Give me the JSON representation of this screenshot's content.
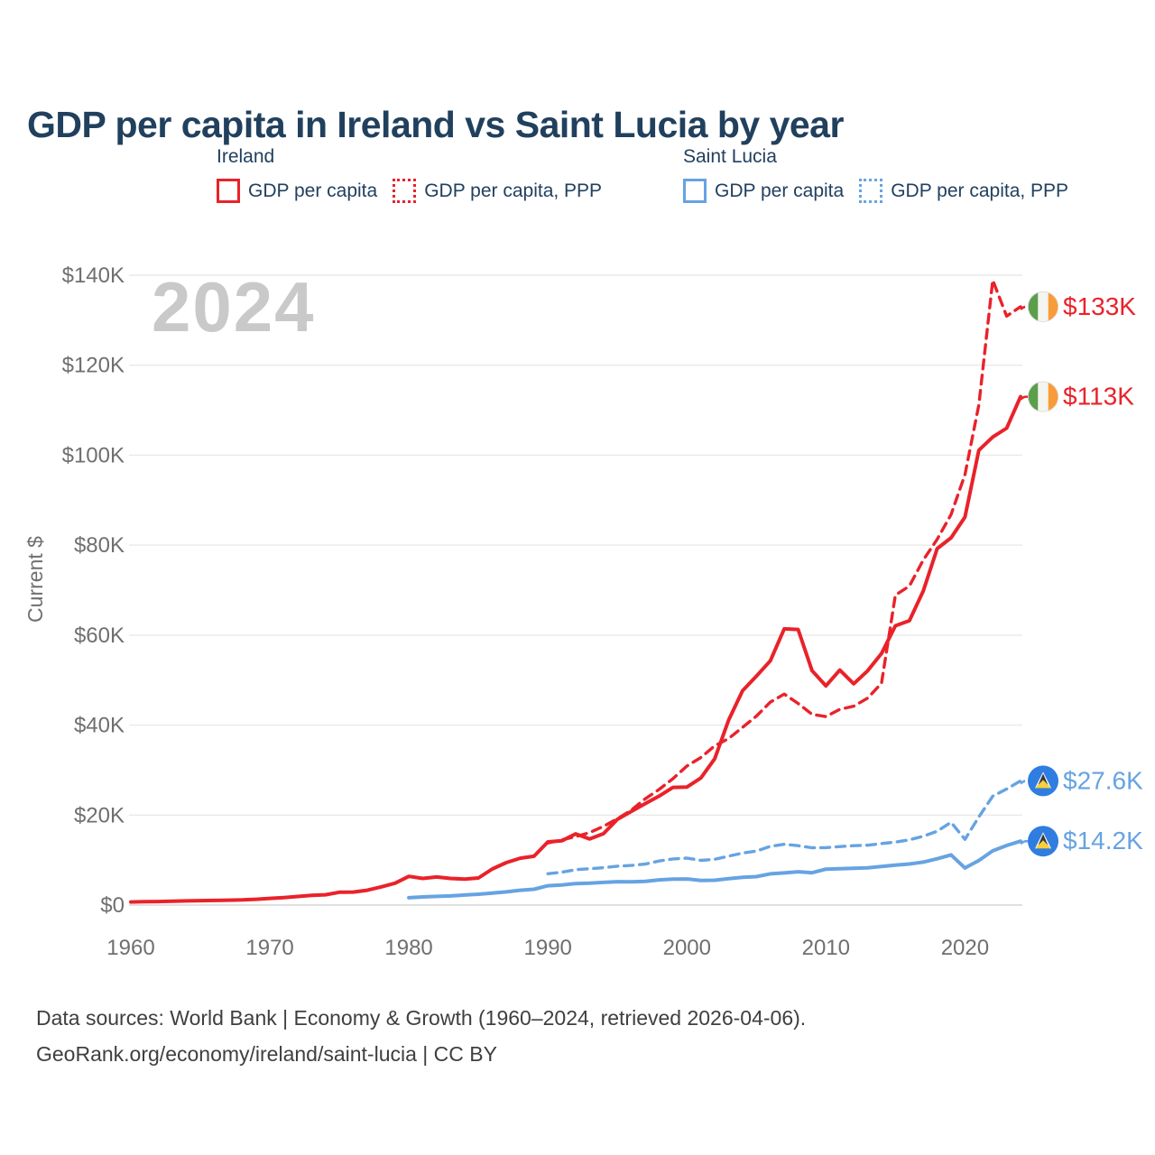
{
  "page": {
    "title": "GDP per capita in Ireland vs Saint Lucia by year",
    "footer": {
      "line1": "Data sources: World Bank | Economy & Growth (1960–2024, retrieved 2026-04-06).",
      "line2": "GeoRank.org/economy/ireland/saint-lucia | CC BY"
    }
  },
  "colors": {
    "title": "#21405e",
    "ireland_red": "#e9222a",
    "saint_lucia_blue": "#66a3e2",
    "axis_text": "#6f6f6f",
    "grid": "#e9e9e9",
    "grid_zero": "#d6d6d6",
    "watermark": "#c9c9c9",
    "footer": "#3f3f3f"
  },
  "legend": {
    "groups": [
      {
        "title": "Ireland",
        "items": [
          {
            "label": "GDP per capita",
            "color": "#e9222a",
            "dash": false
          },
          {
            "label": "GDP per capita, PPP",
            "color": "#e9222a",
            "dash": true
          }
        ]
      },
      {
        "title": "Saint Lucia",
        "items": [
          {
            "label": "GDP per capita",
            "color": "#66a3e2",
            "dash": false
          },
          {
            "label": "GDP per capita, PPP",
            "color": "#66a3e2",
            "dash": true
          }
        ]
      }
    ]
  },
  "chart_data": {
    "type": "line",
    "title": "GDP per capita in Ireland vs Saint Lucia by year",
    "xlabel": "",
    "ylabel": "Current $",
    "watermark": "2024",
    "grid": true,
    "legend_position": "top",
    "xlim": [
      1960,
      2024
    ],
    "ylim": [
      0,
      140000
    ],
    "x_ticks": [
      1960,
      1970,
      1980,
      1990,
      2000,
      2010,
      2020
    ],
    "y_ticks": [
      {
        "value": 0,
        "label": "$0"
      },
      {
        "value": 20000,
        "label": "$20K"
      },
      {
        "value": 40000,
        "label": "$40K"
      },
      {
        "value": 60000,
        "label": "$60K"
      },
      {
        "value": 80000,
        "label": "$80K"
      },
      {
        "value": 100000,
        "label": "$100K"
      },
      {
        "value": 120000,
        "label": "$120K"
      },
      {
        "value": 140000,
        "label": "$140K"
      }
    ],
    "series": [
      {
        "id": "ireland-gdp",
        "name": "Ireland GDP per capita",
        "color": "#e9222a",
        "dash": false,
        "start_year": 1960,
        "values": [
          685,
          740,
          790,
          834,
          923,
          979,
          1023,
          1090,
          1135,
          1279,
          1493,
          1655,
          1903,
          2169,
          2281,
          2847,
          2897,
          3290,
          4029,
          4851,
          6380,
          5920,
          6245,
          5922,
          5777,
          6010,
          8014,
          9433,
          10406,
          10857,
          14048,
          14284,
          15818,
          14685,
          15865,
          19060,
          20800,
          22537,
          24203,
          26153,
          26241,
          28249,
          32531,
          41111,
          47639,
          50877,
          54293,
          61391,
          61264,
          52104,
          48715,
          52224,
          49177,
          52060,
          55899,
          62085,
          63197,
          69822,
          79235,
          81637,
          86251,
          101109,
          104039,
          105993,
          113000
        ]
      },
      {
        "id": "ireland-gdp-ppp",
        "name": "Ireland GDP per capita, PPP",
        "color": "#e9222a",
        "dash": true,
        "start_year": 1990,
        "values": [
          13800,
          14500,
          15200,
          16100,
          17500,
          19200,
          21100,
          23600,
          25700,
          28100,
          30900,
          32800,
          35400,
          37000,
          39500,
          42000,
          45100,
          46900,
          44800,
          42400,
          41900,
          43500,
          44200,
          46000,
          49300,
          68900,
          70900,
          76700,
          81300,
          86800,
          95700,
          111200,
          138900,
          130900,
          133000
        ]
      },
      {
        "id": "saint-lucia-gdp",
        "name": "Saint Lucia GDP per capita",
        "color": "#66a3e2",
        "dash": false,
        "start_year": 1980,
        "values": [
          1620,
          1810,
          1930,
          2030,
          2230,
          2400,
          2670,
          2930,
          3280,
          3500,
          4290,
          4450,
          4770,
          4850,
          5040,
          5200,
          5170,
          5280,
          5600,
          5760,
          5790,
          5480,
          5510,
          5860,
          6170,
          6320,
          6940,
          7150,
          7410,
          7190,
          7980,
          8090,
          8170,
          8280,
          8570,
          8890,
          9120,
          9540,
          10280,
          11160,
          8240,
          9910,
          12050,
          13230,
          14200
        ]
      },
      {
        "id": "saint-lucia-gdp-ppp",
        "name": "Saint Lucia GDP per capita, PPP",
        "color": "#66a3e2",
        "dash": true,
        "start_year": 1990,
        "values": [
          6960,
          7300,
          7860,
          8080,
          8310,
          8650,
          8810,
          9100,
          9780,
          10240,
          10420,
          9920,
          10160,
          10870,
          11560,
          12000,
          13050,
          13500,
          13200,
          12730,
          12750,
          13000,
          13200,
          13300,
          13660,
          14000,
          14500,
          15300,
          16400,
          18400,
          14600,
          19600,
          24200,
          25800,
          27600
        ]
      }
    ],
    "end_labels": [
      {
        "series": "ireland-gdp-ppp",
        "text": "$133K",
        "flag": "ireland"
      },
      {
        "series": "ireland-gdp",
        "text": "$113K",
        "flag": "ireland"
      },
      {
        "series": "saint-lucia-gdp-ppp",
        "text": "$27.6K",
        "flag": "saint-lucia"
      },
      {
        "series": "saint-lucia-gdp",
        "text": "$14.2K",
        "flag": "saint-lucia"
      }
    ],
    "flag_colors": {
      "ireland": {
        "green": "#5b9e4b",
        "white": "#f4f4f0",
        "orange": "#f79c38"
      },
      "saint_lucia": {
        "field": "#2f7de1",
        "gold": "#f8cf3e",
        "dark": "#3a3a3a",
        "white": "#f5f6f8"
      }
    }
  }
}
